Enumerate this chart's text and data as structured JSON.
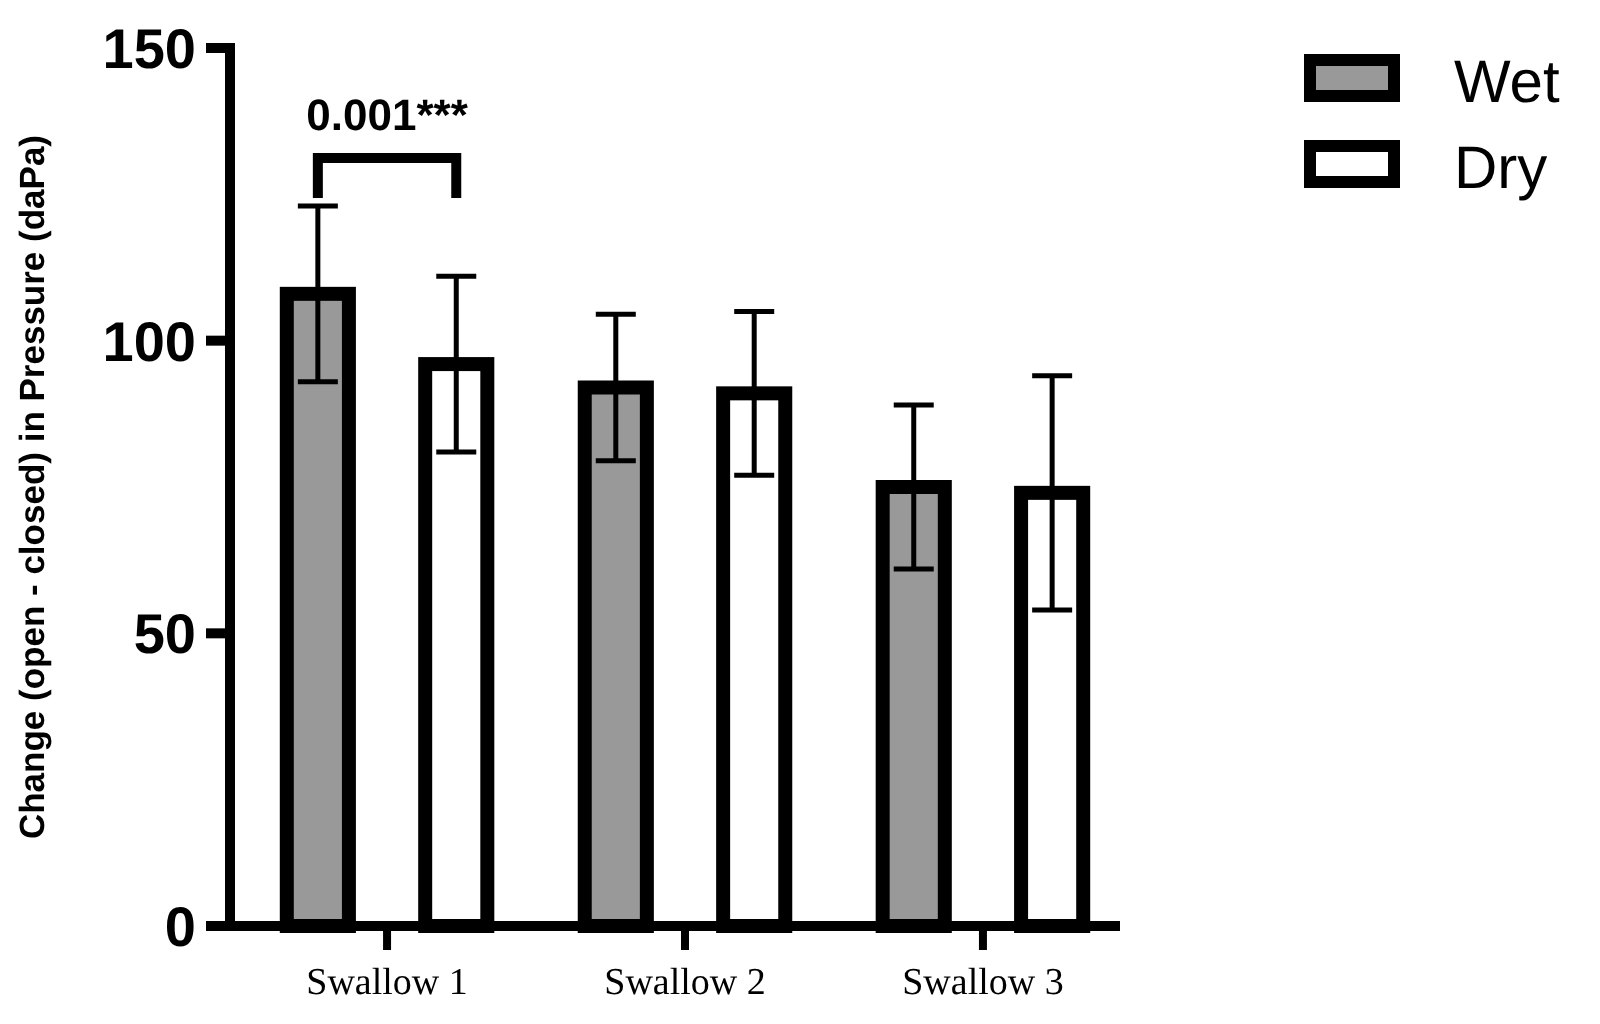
{
  "chart_data": {
    "type": "bar",
    "ylabel": "Change (open - closed) in Pressure (daPa)",
    "categories": [
      "Swallow 1",
      "Swallow 2",
      "Swallow 3"
    ],
    "series": [
      {
        "name": "Wet",
        "color": "#999999",
        "values": [
          108,
          92,
          75
        ],
        "errors": [
          15,
          12.5,
          14
        ]
      },
      {
        "name": "Dry",
        "color": "#ffffff",
        "values": [
          96,
          91,
          74
        ],
        "errors": [
          15,
          14,
          20
        ]
      }
    ],
    "ylim": [
      0,
      150
    ],
    "yticks": [
      0,
      50,
      100,
      150
    ],
    "grid": false,
    "legend": "top right",
    "annotations": [
      "0.001***"
    ]
  }
}
